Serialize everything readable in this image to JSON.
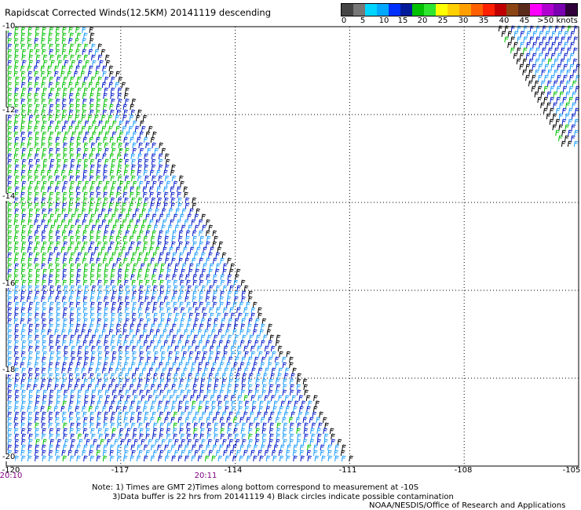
{
  "title": "Rapidscat Corrected Winds(12.5KM) 20141119 descending",
  "legend": {
    "colors": [
      "#444444",
      "#777777",
      "#00d5ff",
      "#00a8ff",
      "#0030ff",
      "#001a9a",
      "#00c000",
      "#2fe52f",
      "#ffff00",
      "#ffd000",
      "#ffa000",
      "#ff6000",
      "#ff2000",
      "#c00000",
      "#8b4513",
      "#5a2a1a",
      "#ff00ff",
      "#b000d0",
      "#7a00b0",
      "#30003a"
    ],
    "labels": [
      "0",
      "5",
      "10",
      "15",
      "20",
      "25",
      "30",
      "35",
      "40",
      "45",
      ">50 knots"
    ]
  },
  "x_ticks": [
    "-120",
    "-117",
    "-114",
    "-111",
    "-108",
    "-105"
  ],
  "y_ticks": [
    "-10",
    "-12",
    "-14",
    "-16",
    "-18",
    "-20"
  ],
  "times": [
    "20:10",
    "20:11"
  ],
  "notes": {
    "line1": "Note: 1) Times are GMT 2)Times along bottom correspond to measurement at -10S",
    "line2": "3)Data buffer is 22 hrs from 20141119 4) Black circles indicate possible contamination",
    "line3": "NOAA/NESDIS/Office of Research and Applications"
  },
  "map": {
    "lon_range": [
      -120,
      -105
    ],
    "lat_range": [
      -20,
      -10
    ],
    "swaths": [
      {
        "name": "main-swath",
        "description": "wedge from -120 to about -111 at -20S, edge to -118.5 at -10S"
      },
      {
        "name": "east-swath",
        "description": "narrow strip in upper-right corner near -106 to -105, -10 to -12.5"
      }
    ],
    "wind_colors": {
      "light": "#00c000",
      "moderate": "#0018c8",
      "strong": "#1a9cff",
      "edge": "#000000"
    }
  }
}
